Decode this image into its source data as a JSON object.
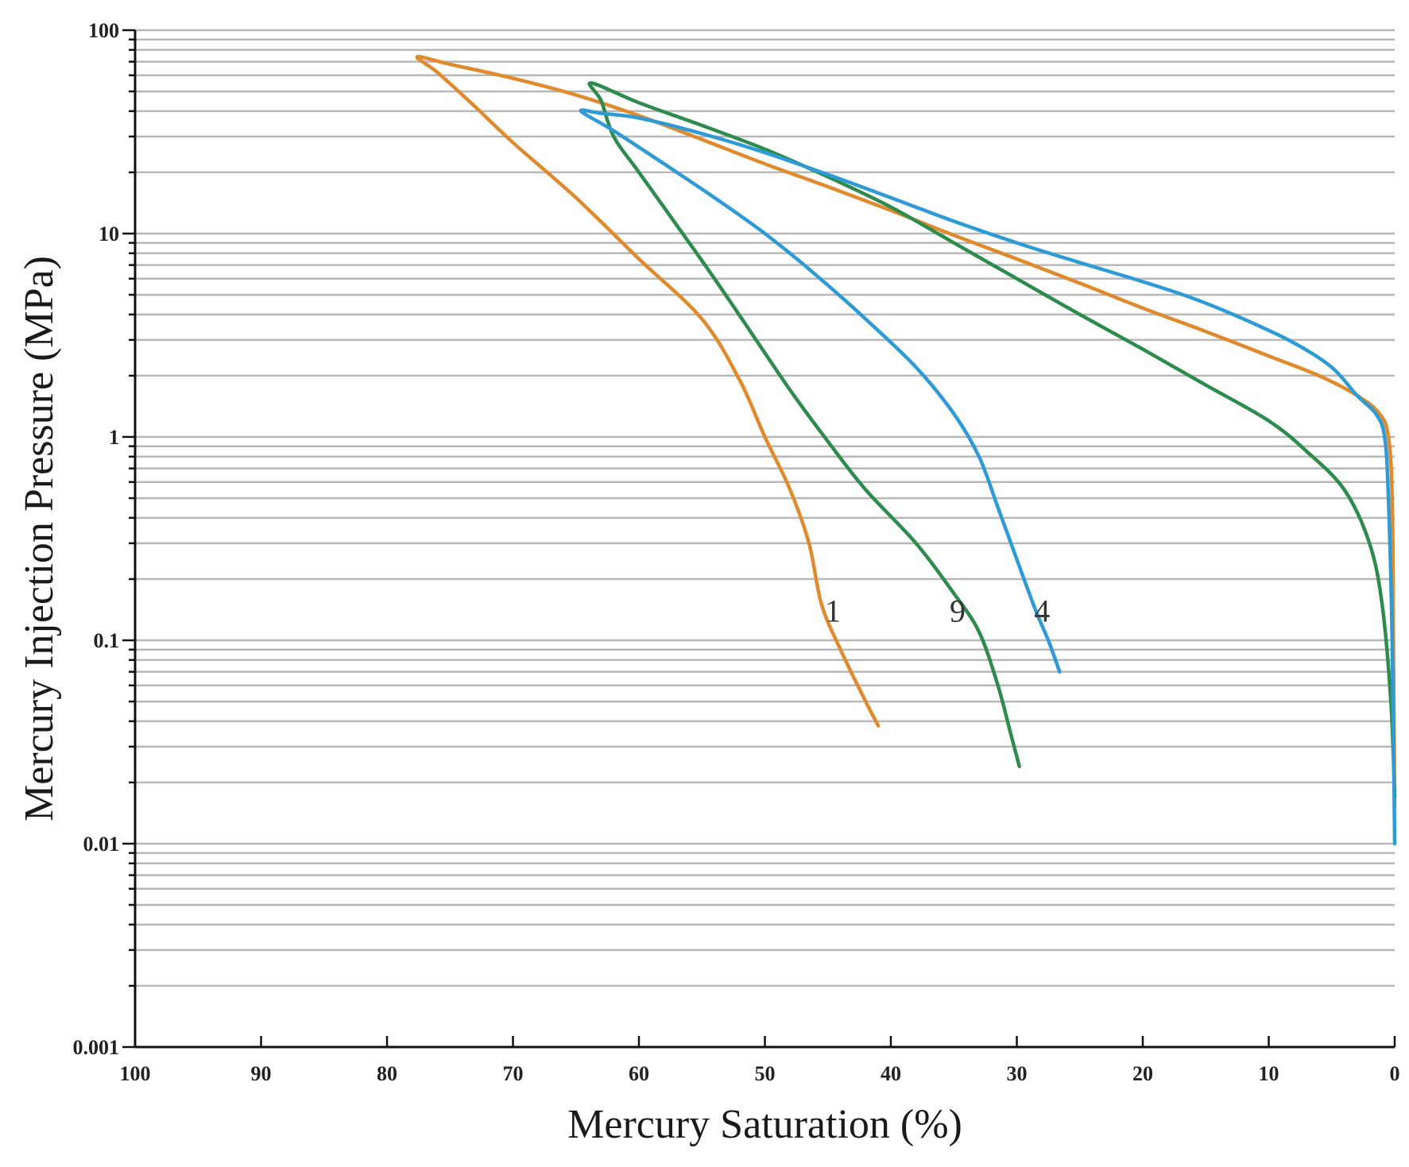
{
  "chart_data": {
    "type": "line",
    "xlabel": "Mercury Saturation (%)",
    "ylabel": "Mercury Injection Pressure (MPa)",
    "x_axis": {
      "range": [
        100,
        0
      ],
      "reversed": true,
      "ticks": [
        100,
        90,
        80,
        70,
        60,
        50,
        40,
        30,
        20,
        10,
        0
      ]
    },
    "y_axis": {
      "scale": "log",
      "range": [
        0.001,
        100
      ],
      "ticks": [
        0.001,
        0.01,
        0.1,
        1,
        10,
        100
      ],
      "tick_labels": [
        "0.001",
        "0.01",
        "0.1",
        "1",
        "10",
        "100"
      ]
    },
    "grid": {
      "horizontal_minor": true,
      "vertical": false
    },
    "series": [
      {
        "name": "1",
        "color": "#e08a2e",
        "label_at": [
          44.6,
          0.14
        ],
        "points": [
          [
            0,
            0.015
          ],
          [
            0.1,
            0.1
          ],
          [
            0.2,
            0.5
          ],
          [
            0.5,
            1.0
          ],
          [
            1.2,
            1.3
          ],
          [
            3,
            1.6
          ],
          [
            6,
            2.0
          ],
          [
            10,
            2.5
          ],
          [
            15,
            3.3
          ],
          [
            20,
            4.3
          ],
          [
            25,
            5.7
          ],
          [
            30,
            7.5
          ],
          [
            35,
            9.8
          ],
          [
            40,
            13
          ],
          [
            45,
            17
          ],
          [
            50,
            22
          ],
          [
            55,
            29
          ],
          [
            60,
            38
          ],
          [
            65,
            48
          ],
          [
            70,
            58
          ],
          [
            75,
            68
          ],
          [
            77.6,
            74
          ],
          [
            76,
            62
          ],
          [
            73,
            42
          ],
          [
            70,
            28
          ],
          [
            65,
            15
          ],
          [
            60,
            7.5
          ],
          [
            55,
            3.8
          ],
          [
            52,
            1.9
          ],
          [
            50,
            1.0
          ],
          [
            48,
            0.55
          ],
          [
            46.5,
            0.3
          ],
          [
            45.5,
            0.15
          ],
          [
            44,
            0.09
          ],
          [
            42,
            0.05
          ],
          [
            41,
            0.038
          ]
        ]
      },
      {
        "name": "9",
        "color": "#2e8b4e",
        "label_at": [
          34.7,
          0.14
        ],
        "points": [
          [
            0,
            0.017
          ],
          [
            0.3,
            0.05
          ],
          [
            1,
            0.15
          ],
          [
            2,
            0.3
          ],
          [
            4,
            0.55
          ],
          [
            7,
            0.85
          ],
          [
            10,
            1.2
          ],
          [
            15,
            1.8
          ],
          [
            20,
            2.7
          ],
          [
            25,
            4.0
          ],
          [
            30,
            6.0
          ],
          [
            35,
            9.0
          ],
          [
            40,
            13.5
          ],
          [
            45,
            19
          ],
          [
            50,
            26
          ],
          [
            55,
            34
          ],
          [
            60,
            44
          ],
          [
            63.8,
            55
          ],
          [
            63,
            45
          ],
          [
            62,
            30
          ],
          [
            60,
            20
          ],
          [
            57,
            11
          ],
          [
            54,
            6
          ],
          [
            51,
            3.2
          ],
          [
            48,
            1.7
          ],
          [
            45,
            0.95
          ],
          [
            42,
            0.55
          ],
          [
            38,
            0.3
          ],
          [
            35,
            0.17
          ],
          [
            33,
            0.11
          ],
          [
            31.5,
            0.06
          ],
          [
            30.5,
            0.035
          ],
          [
            29.8,
            0.024
          ]
        ]
      },
      {
        "name": "4",
        "color": "#2e9bd6",
        "label_at": [
          28,
          0.14
        ],
        "points": [
          [
            0,
            0.01
          ],
          [
            0.2,
            0.1
          ],
          [
            0.5,
            0.5
          ],
          [
            0.8,
            1.0
          ],
          [
            1.5,
            1.3
          ],
          [
            3,
            1.6
          ],
          [
            5,
            2.2
          ],
          [
            8,
            2.9
          ],
          [
            12,
            3.8
          ],
          [
            16,
            4.8
          ],
          [
            20,
            5.8
          ],
          [
            25,
            7.2
          ],
          [
            30,
            9.0
          ],
          [
            35,
            11.5
          ],
          [
            40,
            15
          ],
          [
            45,
            19.5
          ],
          [
            50,
            25
          ],
          [
            55,
            31
          ],
          [
            60,
            37
          ],
          [
            63,
            39
          ],
          [
            64.6,
            40
          ],
          [
            62,
            32
          ],
          [
            58,
            22
          ],
          [
            54,
            15
          ],
          [
            50,
            10
          ],
          [
            46,
            6.3
          ],
          [
            42,
            3.8
          ],
          [
            38,
            2.2
          ],
          [
            35,
            1.3
          ],
          [
            33,
            0.8
          ],
          [
            31.5,
            0.45
          ],
          [
            30,
            0.25
          ],
          [
            28.5,
            0.14
          ],
          [
            27.5,
            0.1
          ],
          [
            26.6,
            0.07
          ]
        ]
      }
    ]
  }
}
